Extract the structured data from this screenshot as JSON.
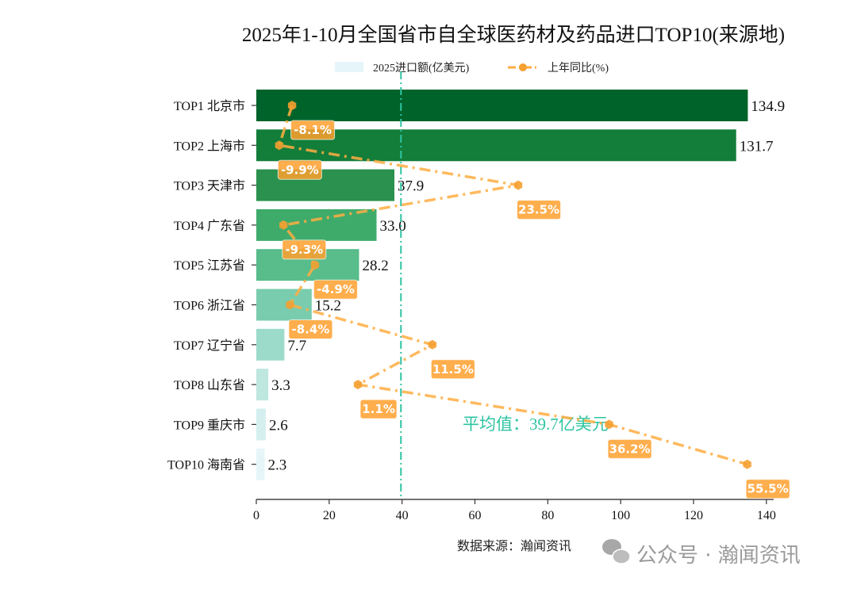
{
  "chart_data": {
    "type": "bar",
    "orientation": "horizontal",
    "title": "2025年1-10月全国省市自全球医药材及药品进口TOP10(来源地)",
    "categories": [
      "TOP1 北京市",
      "TOP2 上海市",
      "TOP3 天津市",
      "TOP4 广东省",
      "TOP5 江苏省",
      "TOP6 浙江省",
      "TOP7 辽宁省",
      "TOP8 山东省",
      "TOP9 重庆市",
      "TOP10 海南省"
    ],
    "series": [
      {
        "name": "2025进口额(亿美元)",
        "type": "bar",
        "values": [
          134.9,
          131.7,
          37.9,
          33.0,
          28.2,
          15.2,
          7.7,
          3.3,
          2.6,
          2.3
        ],
        "value_labels": [
          "134.9",
          "131.7",
          "37.9",
          "33.0",
          "28.2",
          "15.2",
          "7.7",
          "3.3",
          "2.6",
          "2.3"
        ],
        "colors": [
          "#00632a",
          "#137d3a",
          "#2a914e",
          "#3fab6b",
          "#58bc8b",
          "#79ccae",
          "#9cdaca",
          "#bde7df",
          "#d5eff0",
          "#e6f5f9"
        ]
      },
      {
        "name": "上年同比(%)",
        "type": "line",
        "values": [
          -8.1,
          -9.9,
          23.5,
          -9.3,
          -4.9,
          -8.4,
          11.5,
          1.1,
          36.2,
          55.5
        ],
        "value_labels": [
          "-8.1%",
          "-9.9%",
          "23.5%",
          "-9.3%",
          "-4.9%",
          "-8.4%",
          "11.5%",
          "1.1%",
          "36.2%",
          "55.5%"
        ],
        "color": "#ffad42",
        "line_style": "dash-dot",
        "marker": "hexagon",
        "axis_range": [
          -13.1,
          59.2
        ],
        "axis_visible": false
      }
    ],
    "xlim": [
      0,
      142
    ],
    "xticks": [
      0,
      20,
      40,
      60,
      80,
      100,
      120,
      140
    ],
    "grid": false,
    "legend": "top-center",
    "reference_line": {
      "value": 39.7,
      "label": "平均值：39.7亿美元",
      "color": "#2ec4a2",
      "style": "dash-dot"
    },
    "source": "数据来源：瀚闻资讯",
    "watermark": "公众号 · 瀚闻资讯"
  }
}
